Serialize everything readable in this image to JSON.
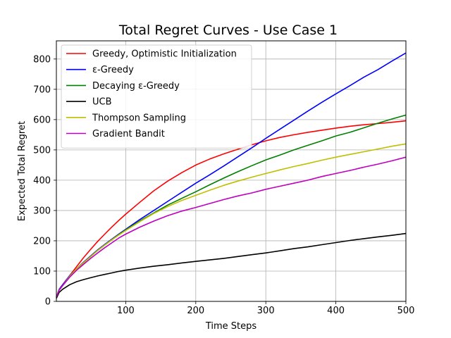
{
  "chart_data": {
    "type": "line",
    "title": "Total Regret Curves - Use Case 1",
    "xlabel": "Time Steps",
    "ylabel": "Expected Total Regret",
    "xlim": [
      1,
      500
    ],
    "ylim": [
      0,
      860
    ],
    "xticks": [
      100,
      200,
      300,
      400,
      500
    ],
    "yticks": [
      0,
      100,
      200,
      300,
      400,
      500,
      600,
      700,
      800
    ],
    "grid": true,
    "legend_position": "top-left",
    "series": [
      {
        "name": "Greedy, Optimistic Initialization",
        "color": "#ff0000",
        "x": [
          1,
          5,
          10,
          20,
          30,
          40,
          50,
          60,
          70,
          80,
          90,
          100,
          120,
          140,
          160,
          180,
          200,
          220,
          240,
          260,
          280,
          300,
          320,
          340,
          360,
          380,
          400,
          420,
          440,
          460,
          480,
          500
        ],
        "y": [
          12,
          40,
          55,
          85,
          115,
          145,
          172,
          198,
          222,
          245,
          267,
          288,
          327,
          365,
          397,
          425,
          450,
          470,
          487,
          502,
          517,
          530,
          541,
          550,
          558,
          565,
          572,
          578,
          583,
          587,
          591,
          596
        ]
      },
      {
        "name": "ε-Greedy",
        "color": "#0000ff",
        "x": [
          1,
          5,
          10,
          20,
          30,
          40,
          50,
          60,
          70,
          80,
          90,
          100,
          120,
          140,
          160,
          180,
          200,
          220,
          240,
          260,
          280,
          300,
          320,
          340,
          360,
          380,
          400,
          420,
          440,
          460,
          480,
          500
        ],
        "y": [
          15,
          40,
          55,
          85,
          108,
          130,
          150,
          170,
          188,
          205,
          222,
          238,
          270,
          300,
          330,
          360,
          390,
          418,
          447,
          477,
          507,
          538,
          568,
          598,
          628,
          657,
          685,
          712,
          740,
          765,
          793,
          820
        ]
      },
      {
        "name": "Decaying ε-Greedy",
        "color": "#008000",
        "x": [
          1,
          5,
          10,
          20,
          30,
          40,
          50,
          60,
          70,
          80,
          90,
          100,
          120,
          140,
          160,
          180,
          200,
          220,
          240,
          260,
          280,
          300,
          320,
          340,
          360,
          380,
          400,
          420,
          440,
          460,
          480,
          500
        ],
        "y": [
          15,
          38,
          52,
          82,
          105,
          128,
          148,
          168,
          186,
          203,
          220,
          236,
          265,
          292,
          318,
          340,
          362,
          385,
          407,
          428,
          448,
          467,
          483,
          500,
          515,
          530,
          546,
          558,
          573,
          588,
          602,
          615
        ]
      },
      {
        "name": "UCB",
        "color": "#000000",
        "x": [
          1,
          5,
          10,
          20,
          30,
          40,
          50,
          60,
          70,
          80,
          90,
          100,
          120,
          140,
          160,
          180,
          200,
          220,
          240,
          260,
          280,
          300,
          320,
          340,
          360,
          380,
          400,
          420,
          440,
          460,
          480,
          500
        ],
        "y": [
          10,
          30,
          40,
          55,
          65,
          72,
          78,
          84,
          89,
          94,
          99,
          103,
          110,
          116,
          121,
          127,
          132,
          137,
          142,
          148,
          154,
          160,
          167,
          174,
          180,
          187,
          194,
          201,
          207,
          213,
          218,
          224
        ]
      },
      {
        "name": "Thompson Sampling",
        "color": "#bfbf00",
        "x": [
          1,
          5,
          10,
          20,
          30,
          40,
          50,
          60,
          70,
          80,
          90,
          100,
          120,
          140,
          160,
          180,
          200,
          220,
          240,
          260,
          280,
          300,
          320,
          340,
          360,
          380,
          400,
          420,
          440,
          460,
          480,
          500
        ],
        "y": [
          15,
          38,
          52,
          83,
          108,
          128,
          148,
          168,
          186,
          203,
          219,
          234,
          263,
          290,
          313,
          333,
          350,
          367,
          383,
          397,
          410,
          422,
          434,
          445,
          455,
          466,
          476,
          485,
          494,
          503,
          512,
          520
        ]
      },
      {
        "name": "Gradient Bandit",
        "color": "#bf00bf",
        "x": [
          1,
          5,
          10,
          20,
          30,
          40,
          50,
          60,
          70,
          80,
          90,
          100,
          120,
          140,
          160,
          180,
          200,
          220,
          240,
          260,
          280,
          300,
          320,
          340,
          360,
          380,
          400,
          420,
          440,
          460,
          480,
          500
        ],
        "y": [
          14,
          37,
          52,
          80,
          103,
          123,
          142,
          160,
          177,
          193,
          209,
          222,
          245,
          265,
          283,
          298,
          310,
          323,
          336,
          348,
          358,
          370,
          380,
          390,
          400,
          412,
          422,
          432,
          443,
          453,
          464,
          476
        ]
      }
    ]
  }
}
